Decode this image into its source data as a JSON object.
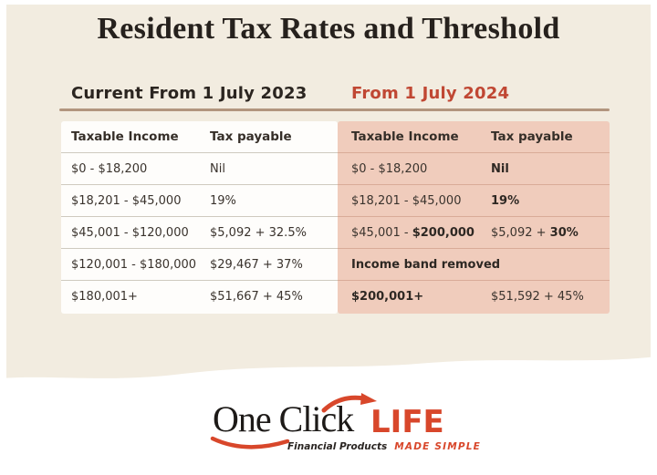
{
  "title": "Resident Tax Rates and Threshold",
  "colors": {
    "cream": "#f2ece0",
    "pink": "#f0ccbc",
    "accent": "#c04733",
    "logo-red": "#d8472b",
    "dark": "#2b2520",
    "tan": "#b2957e",
    "sep-left": "#cfcabf",
    "sep-right": "#d9ab98"
  },
  "sections": {
    "left": {
      "header": "Current From 1 July 2023",
      "columns": [
        "Taxable Income",
        "Tax payable"
      ],
      "rows": [
        {
          "cells": [
            [
              {
                "t": "$0 - $18,200"
              }
            ],
            [
              {
                "t": "Nil"
              }
            ]
          ]
        },
        {
          "cells": [
            [
              {
                "t": "$18,201 - $45,000"
              }
            ],
            [
              {
                "t": "19%"
              }
            ]
          ]
        },
        {
          "cells": [
            [
              {
                "t": "$45,001 - $120,000"
              }
            ],
            [
              {
                "t": "$5,092 + 32.5%"
              }
            ]
          ]
        },
        {
          "cells": [
            [
              {
                "t": "$120,001 - $180,000"
              }
            ],
            [
              {
                "t": "$29,467 + 37%"
              }
            ]
          ]
        },
        {
          "cells": [
            [
              {
                "t": "$180,001+"
              }
            ],
            [
              {
                "t": "$51,667 + 45%"
              }
            ]
          ]
        }
      ]
    },
    "right": {
      "header": "From 1 July 2024",
      "columns": [
        "Taxable Income",
        "Tax payable"
      ],
      "rows": [
        {
          "cells": [
            [
              {
                "t": "$0 - $18,200"
              }
            ],
            [
              {
                "t": "Nil",
                "b": true
              }
            ]
          ]
        },
        {
          "cells": [
            [
              {
                "t": "$18,201 - $45,000"
              }
            ],
            [
              {
                "t": "19%",
                "b": true
              }
            ]
          ]
        },
        {
          "cells": [
            [
              {
                "t": "$45,001 - "
              },
              {
                "t": "$200,000",
                "b": true
              }
            ],
            [
              {
                "t": "$5,092 + "
              },
              {
                "t": "30%",
                "b": true
              }
            ]
          ]
        },
        {
          "span": true,
          "cells": [
            [
              {
                "t": "Income band removed",
                "b": true
              }
            ]
          ]
        },
        {
          "cells": [
            [
              {
                "t": "$200,001+",
                "b": true
              }
            ],
            [
              {
                "t": "$51,592 + 45%"
              }
            ]
          ]
        }
      ]
    }
  },
  "logo": {
    "one_click": "One Click",
    "life": "LIFE",
    "tagline_left": "Financial Products",
    "tagline_right": "MADE SIMPLE"
  },
  "chart_data": [
    {
      "type": "table",
      "title": "Current From 1 July 2023",
      "columns": [
        "Taxable Income",
        "Tax payable"
      ],
      "rows": [
        [
          "$0 - $18,200",
          "Nil"
        ],
        [
          "$18,201 - $45,000",
          "19%"
        ],
        [
          "$45,001 - $120,000",
          "$5,092 + 32.5%"
        ],
        [
          "$120,001 - $180,000",
          "$29,467 + 37%"
        ],
        [
          "$180,001+",
          "$51,667 + 45%"
        ]
      ]
    },
    {
      "type": "table",
      "title": "From 1 July 2024",
      "columns": [
        "Taxable Income",
        "Tax payable"
      ],
      "rows": [
        [
          "$0 - $18,200",
          "Nil"
        ],
        [
          "$18,201 - $45,000",
          "19%"
        ],
        [
          "$45,001 - $200,000",
          "$5,092 + 30%"
        ],
        [
          "Income band removed",
          ""
        ],
        [
          "$200,001+",
          "$51,592 + 45%"
        ]
      ]
    }
  ]
}
